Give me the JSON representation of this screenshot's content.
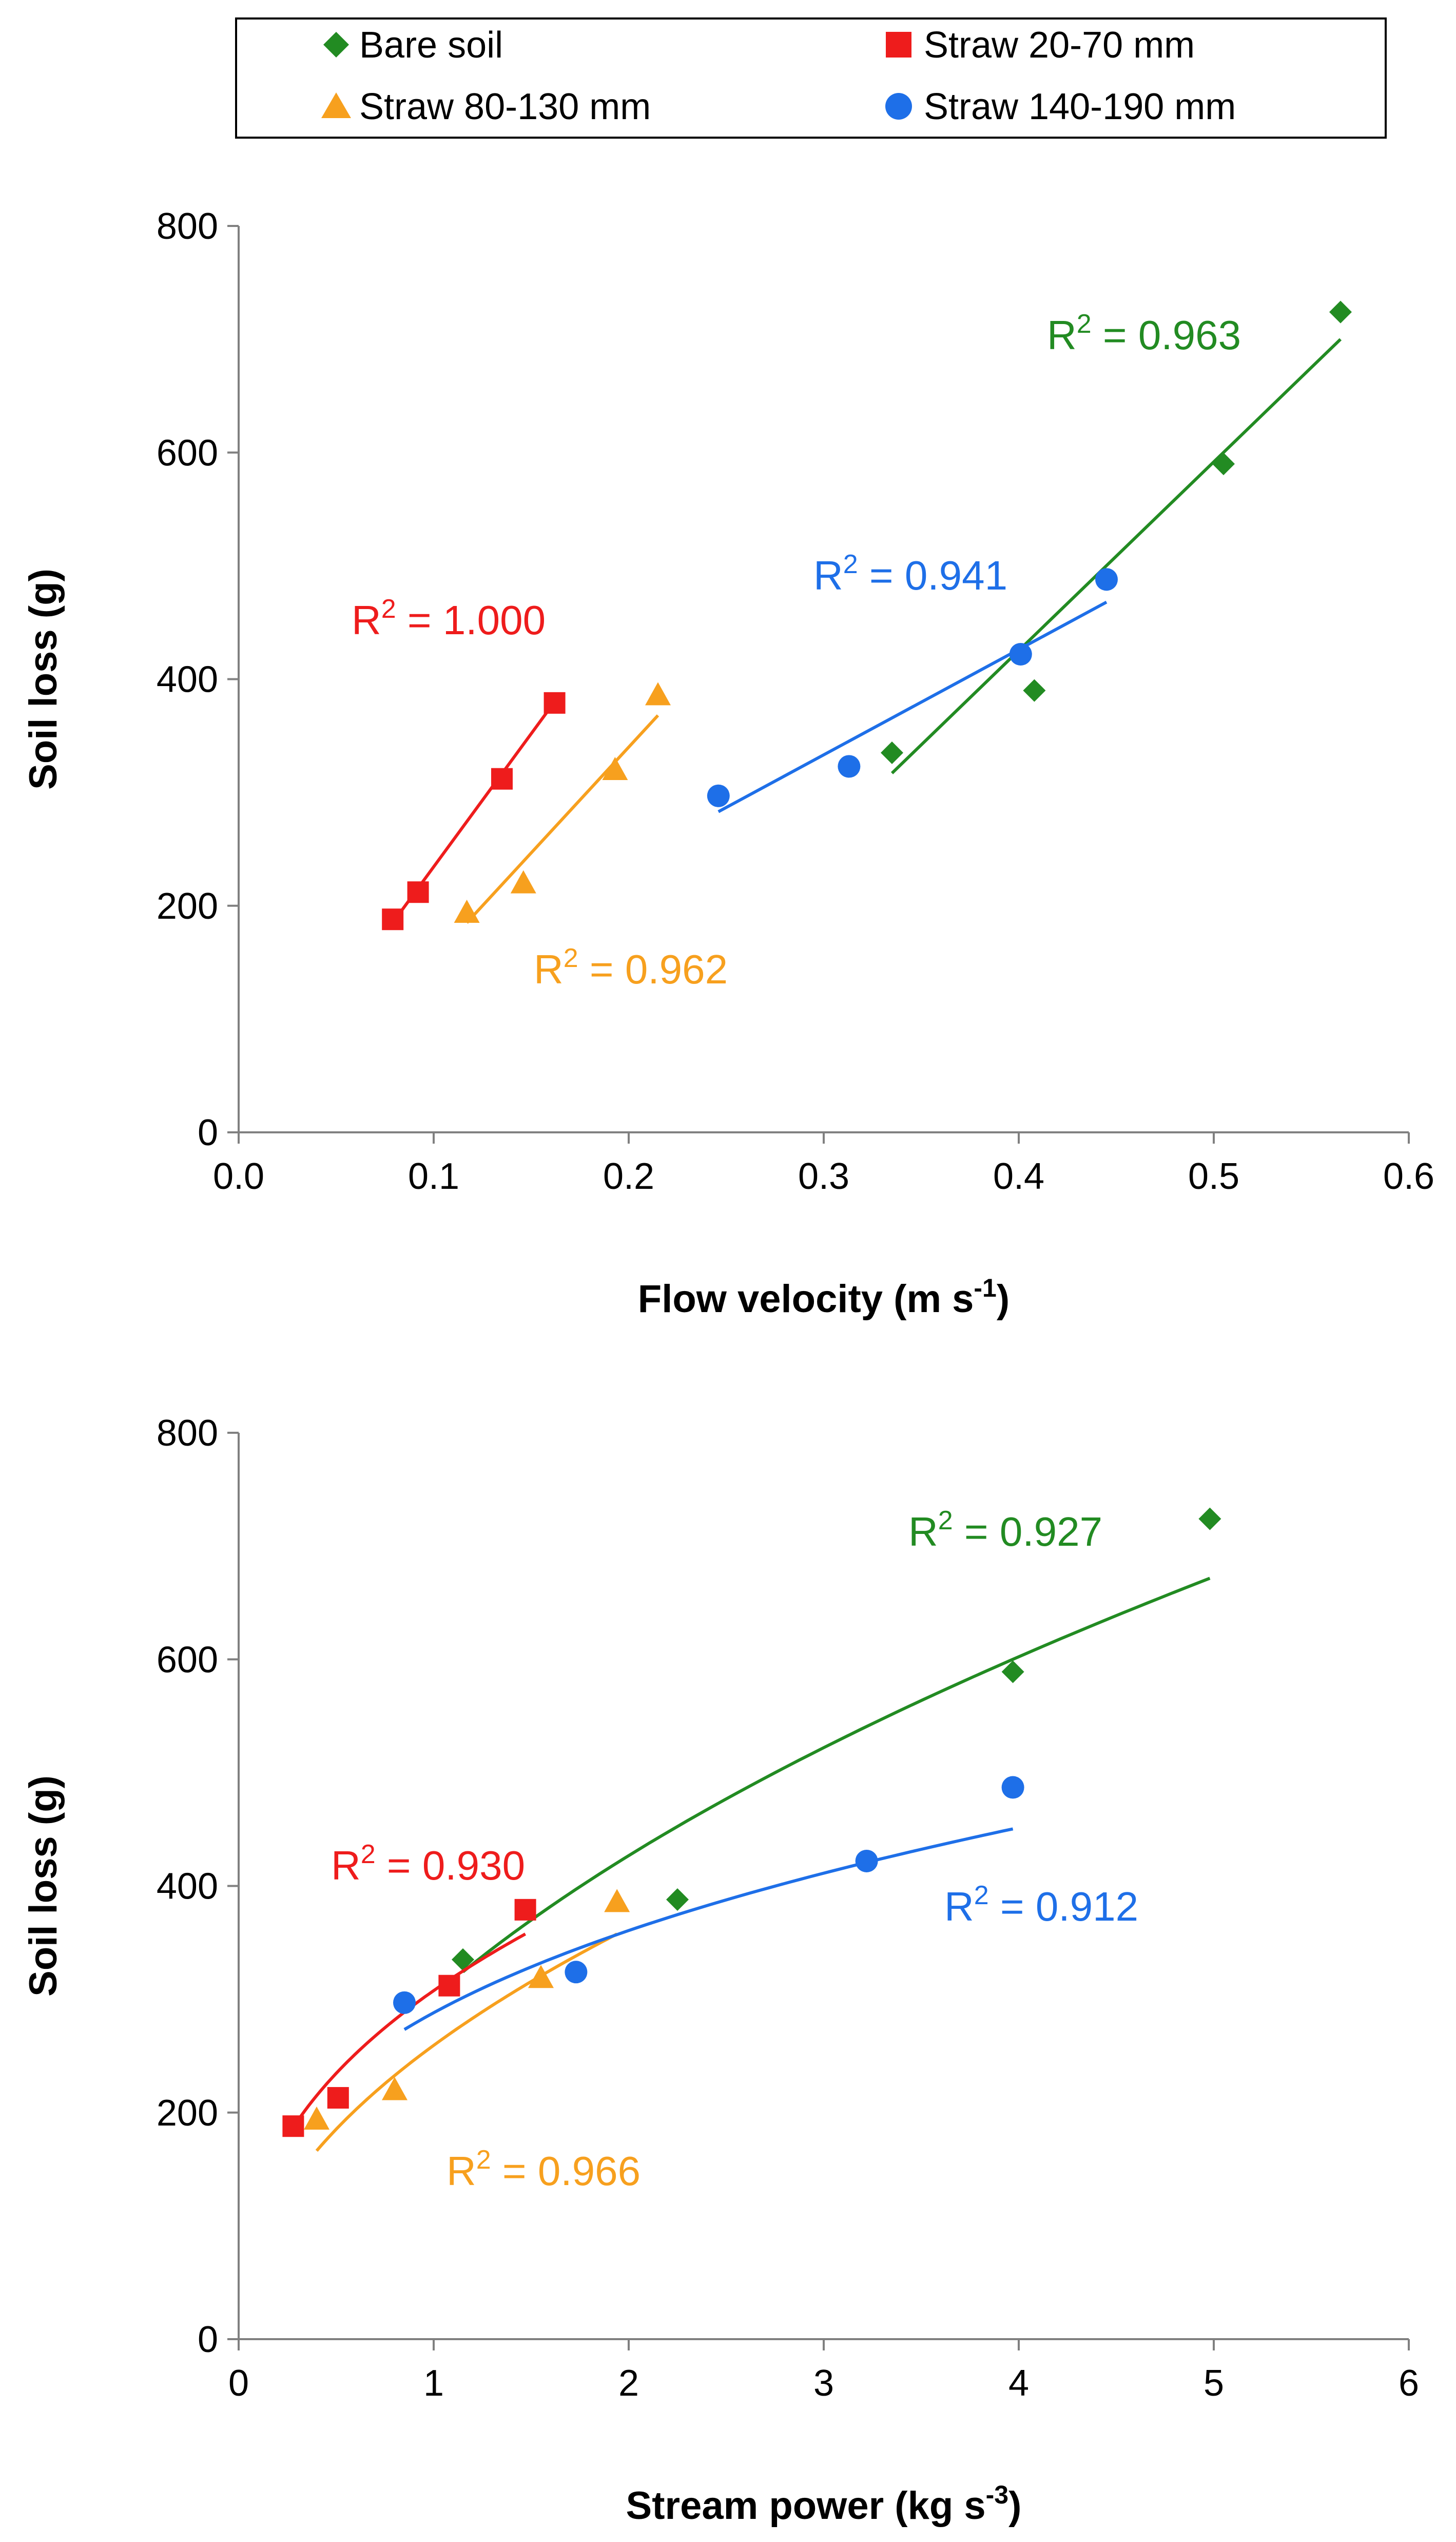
{
  "legend": {
    "items": [
      {
        "label": "Bare soil",
        "color": "#228B22",
        "marker": "diamond"
      },
      {
        "label": "Straw 20-70 mm",
        "color": "#EE1C1C",
        "marker": "square"
      },
      {
        "label": "Straw 80-130 mm",
        "color": "#F7A01E",
        "marker": "triangle"
      },
      {
        "label": "Straw 140-190 mm",
        "color": "#1E6FE8",
        "marker": "circle"
      }
    ]
  },
  "chart_data": [
    {
      "type": "scatter",
      "id": "velocity",
      "xlabel": "Flow velocity (m s",
      "xlabel_sup": "-1",
      "xlabel_end": ")",
      "ylabel": "Soil loss (g)",
      "xlim": [
        0,
        0.6
      ],
      "ylim": [
        0,
        800
      ],
      "xticks": [
        0,
        0.1,
        0.2,
        0.3,
        0.4,
        0.5,
        0.6
      ],
      "xtick_labels": [
        "0.0",
        "0.1",
        "0.2",
        "0.3",
        "0.4",
        "0.5",
        "0.6"
      ],
      "yticks": [
        0,
        200,
        400,
        600,
        800
      ],
      "ytick_labels": [
        "0",
        "200",
        "400",
        "600",
        "800"
      ],
      "series": [
        {
          "name": "Bare soil",
          "points": [
            [
              0.335,
              335
            ],
            [
              0.408,
              390
            ],
            [
              0.505,
              590
            ],
            [
              0.565,
              724
            ]
          ],
          "trend": {
            "kind": "linear",
            "x": [
              0.335,
              0.565
            ],
            "y": [
              317,
              700
            ]
          },
          "r2_label": "= 0.963"
        },
        {
          "name": "Straw 20-70 mm",
          "points": [
            [
              0.079,
              188
            ],
            [
              0.092,
              212
            ],
            [
              0.135,
              312
            ],
            [
              0.162,
              379
            ]
          ],
          "trend": {
            "kind": "linear",
            "x": [
              0.079,
              0.162
            ],
            "y": [
              185,
              380
            ]
          },
          "r2_label": "= 1.000"
        },
        {
          "name": "Straw 80-130 mm",
          "points": [
            [
              0.117,
              194
            ],
            [
              0.146,
              220
            ],
            [
              0.193,
              320
            ],
            [
              0.215,
              386
            ]
          ],
          "trend": {
            "kind": "linear",
            "x": [
              0.117,
              0.215
            ],
            "y": [
              185,
              368
            ]
          },
          "r2_label": "= 0.962"
        },
        {
          "name": "Straw 140-190 mm",
          "points": [
            [
              0.246,
              297
            ],
            [
              0.313,
              323
            ],
            [
              0.401,
              422
            ],
            [
              0.445,
              488
            ]
          ],
          "trend": {
            "kind": "linear",
            "x": [
              0.246,
              0.445
            ],
            "y": [
              283,
              468
            ]
          },
          "r2_label": "= 0.941"
        }
      ]
    },
    {
      "type": "scatter",
      "id": "stream",
      "xlabel": "Stream power (kg s",
      "xlabel_sup": "-3",
      "xlabel_end": ")",
      "ylabel": "Soil loss (g)",
      "xlim": [
        0,
        6
      ],
      "ylim": [
        0,
        800
      ],
      "xticks": [
        0,
        1,
        2,
        3,
        4,
        5,
        6
      ],
      "xtick_labels": [
        "0",
        "1",
        "2",
        "3",
        "4",
        "5",
        "6"
      ],
      "yticks": [
        0,
        200,
        400,
        600,
        800
      ],
      "ytick_labels": [
        "0",
        "200",
        "400",
        "600",
        "800"
      ],
      "series": [
        {
          "name": "Bare soil",
          "points": [
            [
              1.15,
              335
            ],
            [
              2.25,
              388
            ],
            [
              3.97,
              589
            ],
            [
              4.98,
              724
            ]
          ],
          "trend": {
            "kind": "power",
            "a": 302.4,
            "b": 0.497,
            "x": [
              1.15,
              4.98
            ]
          },
          "r2_label": "= 0.927"
        },
        {
          "name": "Straw 20-70 mm",
          "points": [
            [
              0.28,
              188
            ],
            [
              0.51,
              213
            ],
            [
              1.08,
              312
            ],
            [
              1.47,
              379
            ]
          ],
          "trend": {
            "kind": "power",
            "a": 307.6,
            "b": 0.391,
            "x": [
              0.28,
              1.47
            ]
          },
          "r2_label": "= 0.930"
        },
        {
          "name": "Straw 80-130 mm",
          "points": [
            [
              0.4,
              194
            ],
            [
              0.8,
              220
            ],
            [
              1.55,
              319
            ],
            [
              1.94,
              386
            ]
          ],
          "trend": {
            "kind": "power",
            "a": 259.3,
            "b": 0.485,
            "x": [
              0.4,
              1.94
            ]
          },
          "r2_label": "= 0.966"
        },
        {
          "name": "Straw 140-190 mm",
          "points": [
            [
              0.85,
              297
            ],
            [
              1.73,
              324
            ],
            [
              3.22,
              422
            ],
            [
              3.97,
              487
            ]
          ],
          "trend": {
            "kind": "power",
            "a": 288.1,
            "b": 0.324,
            "x": [
              0.85,
              3.97
            ]
          },
          "r2_label": "= 0.912"
        }
      ]
    }
  ]
}
